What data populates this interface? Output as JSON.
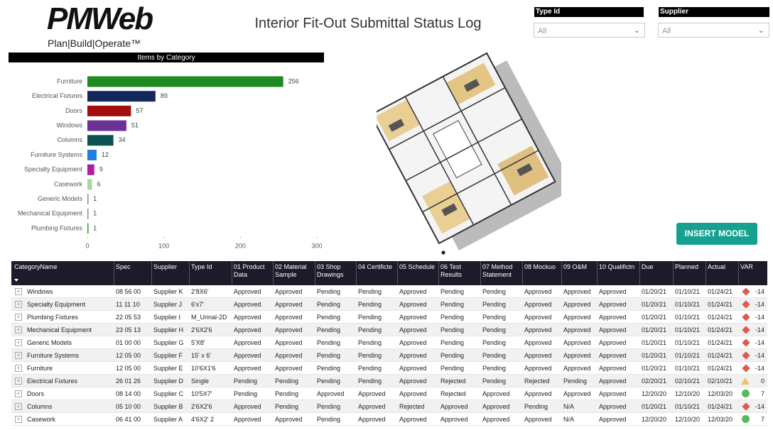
{
  "header": {
    "logo": "PMWeb",
    "tagline": "Plan|Build|Operate™",
    "title": "Interior Fit-Out Submittal Status Log"
  },
  "filters": [
    {
      "label": "Type Id",
      "value": "All"
    },
    {
      "label": "Supplier",
      "value": "All"
    }
  ],
  "chart_data": {
    "type": "bar",
    "orientation": "horizontal",
    "title": "Items by Category",
    "categories": [
      "Furniture",
      "Electrical Fixtures",
      "Doors",
      "Windows",
      "Columns",
      "Furniture Systems",
      "Specialty Equipment",
      "Casework",
      "Generic Models",
      "Mechanical Equipment",
      "Plumbing Fixtures"
    ],
    "values": [
      256,
      89,
      57,
      51,
      34,
      12,
      9,
      6,
      1,
      1,
      1
    ],
    "colors": [
      "#1f8a1f",
      "#13295b",
      "#a20e0e",
      "#6b3296",
      "#0b5252",
      "#1e7fdc",
      "#b11ba3",
      "#a9d6a0",
      "#8c8c8c",
      "#8c8c8c",
      "#2e9a2e"
    ],
    "xlim": [
      0,
      300
    ],
    "xticks": [
      0,
      100,
      200,
      300
    ]
  },
  "button": {
    "label": "INSERT MODEL"
  },
  "table": {
    "columns": [
      "CategoryName",
      "Spec",
      "Supplier",
      "Type Id",
      "01 Product Data",
      "02 Material Sample",
      "03 Shop Drawings",
      "04 Certificte",
      "05 Schedule",
      "06 Test Results",
      "07 Method Statement",
      "08 Mockuo",
      "09 O&M",
      "10 Qualifictn",
      "Due",
      "Planned",
      "Actual",
      "VAR"
    ],
    "rows": [
      [
        "Windows",
        "08 56 00",
        "Supplier K",
        "2'8X6'",
        "Approved",
        "Approved",
        "Pending",
        "Pending",
        "Approved",
        "Pending",
        "Pending",
        "Approved",
        "Approved",
        "Approved",
        "01/20/21",
        "01/10/21",
        "01/24/21",
        -14
      ],
      [
        "Specialty Equipment",
        "11 11 10",
        "Supplier J",
        "6'x7'",
        "Approved",
        "Approved",
        "Pending",
        "Pending",
        "Approved",
        "Pending",
        "Pending",
        "Approved",
        "Approved",
        "Approved",
        "01/20/21",
        "01/10/21",
        "01/24/21",
        -14
      ],
      [
        "Plumbing Fixtures",
        "22 05 53",
        "Supplier I",
        "M_Urinal-2D",
        "Approved",
        "Approved",
        "Pending",
        "Pending",
        "Approved",
        "Pending",
        "Pending",
        "Approved",
        "Approved",
        "Approved",
        "01/20/21",
        "01/10/21",
        "01/24/21",
        -14
      ],
      [
        "Mechanical Equipment",
        "23 05 13",
        "Supplier H",
        "2'6X2'6",
        "Approved",
        "Approved",
        "Pending",
        "Pending",
        "Approved",
        "Pending",
        "Pending",
        "Approved",
        "Approved",
        "Approved",
        "01/20/21",
        "01/10/21",
        "01/24/21",
        -14
      ],
      [
        "Generic Models",
        "01 00 00",
        "Supplier G",
        "5'X8'",
        "Approved",
        "Approved",
        "Pending",
        "Pending",
        "Approved",
        "Pending",
        "Pending",
        "Approved",
        "Approved",
        "Approved",
        "01/20/21",
        "01/10/21",
        "01/24/21",
        -14
      ],
      [
        "Furniture Systems",
        "12 05 00",
        "Supplier F",
        "15' x 6'",
        "Approved",
        "Approved",
        "Pending",
        "Pending",
        "Approved",
        "Pending",
        "Pending",
        "Approved",
        "Approved",
        "Approved",
        "01/20/21",
        "01/10/21",
        "01/24/21",
        -14
      ],
      [
        "Furniture",
        "12 05 00",
        "Supplier E",
        "10'6X1'6",
        "Approved",
        "Approved",
        "Pending",
        "Pending",
        "Approved",
        "Pending",
        "Pending",
        "Approved",
        "Approved",
        "Approved",
        "01/20/21",
        "01/10/21",
        "01/24/21",
        -14
      ],
      [
        "Electrical Fixtures",
        "26 01 26",
        "Supplier D",
        "Single",
        "Pending",
        "Pending",
        "Pending",
        "Pending",
        "Approved",
        "Rejected",
        "Pending",
        "Rejected",
        "Pending",
        "Approved",
        "02/20/21",
        "02/10/21",
        "02/10/21",
        0
      ],
      [
        "Doors",
        "08 14 00",
        "Supplier C",
        "10'5X7'",
        "Pending",
        "Pending",
        "Approved",
        "Approved",
        "Approved",
        "Rejected",
        "Approved",
        "Approved",
        "Approved",
        "Approved",
        "12/20/20",
        "12/10/20",
        "12/03/20",
        7
      ],
      [
        "Columns",
        "05 10 00",
        "Supplier B",
        "2'6X2'6",
        "Approved",
        "Pending",
        "Pending",
        "Approved",
        "Rejected",
        "Approved",
        "Approved",
        "Pending",
        "N/A",
        "Approved",
        "01/20/21",
        "01/10/21",
        "01/24/21",
        -14
      ],
      [
        "Casework",
        "06 41 00",
        "Supplier A",
        "4'6X2' 2",
        "Approved",
        "Approved",
        "Pending",
        "Approved",
        "Approved",
        "Approved",
        "Approved",
        "Approved",
        "N/A",
        "Approved",
        "12/20/20",
        "12/10/20",
        "12/03/20",
        7
      ]
    ]
  }
}
